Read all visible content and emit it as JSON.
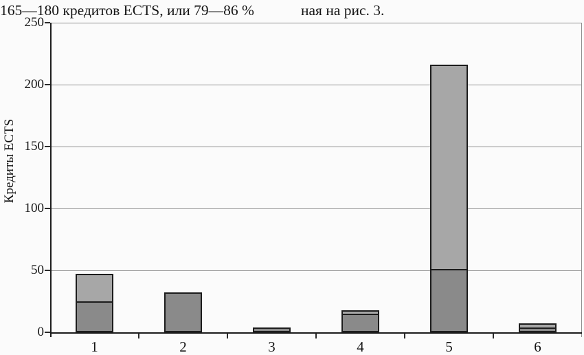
{
  "header": {
    "left_text": "165—180 кредитов ECTS, или 79—86 %",
    "right_text": "ная на рис. 3."
  },
  "chart_data": {
    "type": "bar",
    "stacked": true,
    "title": "",
    "y_title": "Кредиты ECTS",
    "x_title": "",
    "categories": [
      "1",
      "2",
      "3",
      "4",
      "5",
      "6"
    ],
    "series": [
      {
        "name": "dark-bottom-segment",
        "color": "#8a8a8a",
        "values": [
          25,
          32,
          4,
          15,
          51,
          4
        ]
      },
      {
        "name": "light-top-segment",
        "color": "#a7a7a7",
        "values": [
          22,
          0,
          0,
          3,
          165,
          3
        ]
      }
    ],
    "totals": [
      47,
      32,
      4,
      18,
      216,
      7
    ],
    "ylim": [
      0,
      250
    ],
    "ytick_step": 50,
    "yticks": [
      0,
      50,
      100,
      150,
      200,
      250
    ],
    "ytick_labels": [
      "0",
      "50",
      "100",
      "150",
      "200",
      "250"
    ],
    "grid": true,
    "legend_position": "none",
    "axis_color": "#1c1c1c",
    "gridline_color": "#8f8f8f",
    "bar_border_color": "#1c1c1c"
  }
}
